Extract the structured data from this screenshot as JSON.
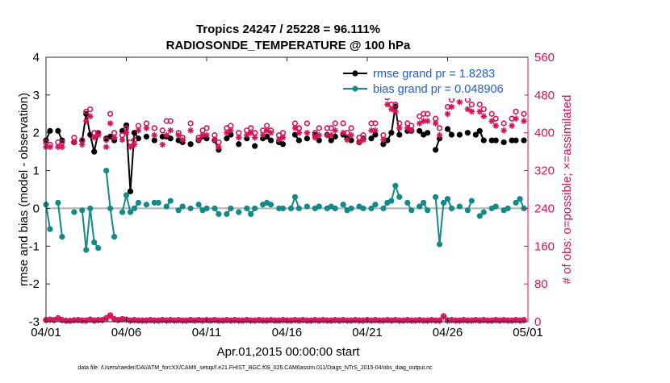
{
  "chart_data": {
    "type": "line",
    "title": "Tropics 24247 / 25228 = 96.111%",
    "subtitle": "RADIOSONDE_TEMPERATURE @ 100 hPa",
    "xlabel": "Apr.01,2015 00:00:00 start",
    "ylabel": "rmse and bias (model - observation)",
    "ylabel_right": "# of obs: o=possible; ×=assimilated",
    "footnote": "data file: /Users/raeder/DAI/ATM_forcXX/CAM6_setup/f.e21.FHIST_BGC.f09_025.CAM6assim.011/Diags_NTrS_2015-04/obs_diag_output.nc",
    "xlim": [
      0,
      30
    ],
    "ylim": [
      -3,
      4
    ],
    "ylim_right": [
      0,
      560
    ],
    "x_ticks": [
      0,
      5,
      10,
      15,
      20,
      25,
      30
    ],
    "x_tick_labels": [
      "04/01",
      "04/06",
      "04/11",
      "04/16",
      "04/21",
      "04/26",
      "05/01"
    ],
    "y_ticks": [
      -3,
      -2,
      -1,
      0,
      1,
      2,
      3,
      4
    ],
    "y_tick_labels": [
      "-3",
      "-2",
      "-1",
      "0",
      "1",
      "2",
      "3",
      "4"
    ],
    "y_ticks_right": [
      0,
      80,
      160,
      240,
      320,
      400,
      480,
      560
    ],
    "y_tick_labels_right": [
      "0",
      "80",
      "160",
      "240",
      "320",
      "400",
      "480",
      "560"
    ],
    "x": [
      0.0,
      0.25,
      0.5,
      0.75,
      1.0,
      1.25,
      1.5,
      1.75,
      2.0,
      2.25,
      2.5,
      2.75,
      3.0,
      3.25,
      3.5,
      3.75,
      4.0,
      4.25,
      4.5,
      4.75,
      5.0,
      5.25,
      5.5,
      5.75,
      6.0,
      6.25,
      6.5,
      6.75,
      7.0,
      7.25,
      7.5,
      7.75,
      8.0,
      8.25,
      8.5,
      8.75,
      9.0,
      9.25,
      9.5,
      9.75,
      10.0,
      10.25,
      10.5,
      10.75,
      11.0,
      11.25,
      11.5,
      11.75,
      12.0,
      12.25,
      12.5,
      12.75,
      13.0,
      13.25,
      13.5,
      13.75,
      14.0,
      14.25,
      14.5,
      14.75,
      15.0,
      15.25,
      15.5,
      15.75,
      16.0,
      16.25,
      16.5,
      16.75,
      17.0,
      17.25,
      17.5,
      17.75,
      18.0,
      18.25,
      18.5,
      18.75,
      19.0,
      19.25,
      19.5,
      19.75,
      20.0,
      20.25,
      20.5,
      20.75,
      21.0,
      21.25,
      21.5,
      21.75,
      22.0,
      22.25,
      22.5,
      22.75,
      23.0,
      23.25,
      23.5,
      23.75,
      24.0,
      24.25,
      24.5,
      24.75,
      25.0,
      25.25,
      25.5,
      25.75,
      26.0,
      26.25,
      26.5,
      26.75,
      27.0,
      27.25,
      27.5,
      27.75,
      28.0,
      28.25,
      28.5,
      28.75,
      29.0,
      29.25,
      29.5,
      29.75
    ],
    "series": [
      {
        "name": "rmse grand pr = 1.8283",
        "color": "#000000",
        "marker": "filled-circle",
        "values": [
          1.8,
          2.05,
          null,
          2.05,
          1.8,
          null,
          null,
          1.75,
          null,
          1.8,
          2.5,
          1.95,
          1.5,
          2.0,
          null,
          1.85,
          1.9,
          1.8,
          null,
          2.05,
          2.2,
          0.45,
          2.0,
          1.85,
          null,
          1.9,
          null,
          1.8,
          null,
          1.9,
          1.9,
          1.85,
          null,
          1.8,
          1.75,
          null,
          1.7,
          null,
          1.8,
          1.9,
          1.85,
          null,
          1.8,
          1.55,
          null,
          1.85,
          1.95,
          null,
          1.7,
          null,
          1.85,
          null,
          1.65,
          null,
          1.85,
          1.9,
          1.8,
          null,
          1.75,
          1.7,
          null,
          null,
          1.95,
          1.8,
          null,
          1.85,
          null,
          1.95,
          1.8,
          null,
          1.95,
          1.8,
          1.9,
          null,
          1.95,
          1.85,
          1.8,
          null,
          1.75,
          1.85,
          null,
          1.85,
          1.95,
          null,
          1.7,
          1.8,
          2.0,
          2.7,
          1.95,
          null,
          2.05,
          2.05,
          null,
          2.05,
          1.95,
          2.0,
          null,
          1.55,
          1.85,
          null,
          2.1,
          1.95,
          null,
          1.95,
          null,
          2.0,
          null,
          1.95,
          2.05,
          1.8,
          null,
          1.8,
          1.8,
          null,
          1.75,
          null,
          1.8,
          1.8,
          null,
          1.8
        ]
      },
      {
        "name": "bias grand pr = 0.048906",
        "color": "#138a8a",
        "marker": "filled-circle",
        "values": [
          0.1,
          -0.55,
          null,
          0.15,
          -0.75,
          null,
          null,
          -0.1,
          null,
          -0.05,
          -1.1,
          0.0,
          -0.9,
          -1.05,
          null,
          1.0,
          0.0,
          -0.75,
          null,
          -0.1,
          0.35,
          -0.1,
          0.0,
          0.15,
          null,
          0.1,
          null,
          0.15,
          0.15,
          null,
          0.05,
          0.2,
          null,
          -0.05,
          0.05,
          null,
          0.0,
          null,
          0.1,
          -0.05,
          0.0,
          null,
          0.0,
          -0.15,
          null,
          -0.15,
          0.0,
          null,
          -0.1,
          null,
          0.0,
          -0.15,
          0.0,
          null,
          0.1,
          0.15,
          0.1,
          null,
          0.0,
          0.0,
          null,
          0.0,
          0.3,
          0.0,
          null,
          0.05,
          null,
          0.0,
          0.05,
          null,
          0.0,
          0.05,
          0.0,
          null,
          0.1,
          -0.05,
          0.0,
          null,
          0.05,
          0.0,
          null,
          0.0,
          0.1,
          null,
          0.0,
          0.15,
          0.2,
          0.6,
          0.3,
          null,
          0.15,
          -0.05,
          null,
          0.05,
          0.15,
          -0.05,
          null,
          0.3,
          -0.95,
          0.15,
          0.25,
          0.0,
          null,
          0.05,
          null,
          -0.05,
          0.2,
          null,
          -0.2,
          -0.1,
          null,
          0.0,
          0.05,
          null,
          -0.05,
          0.0,
          null,
          0.15,
          0.25,
          0.0
        ]
      },
      {
        "name": "possible obs",
        "color": "#d4145a",
        "marker": "open-circle",
        "axis": "right",
        "values": [
          380,
          375,
          null,
          380,
          380,
          null,
          null,
          390,
          null,
          385,
          445,
          450,
          400,
          400,
          null,
          385,
          440,
          400,
          null,
          395,
          410,
          380,
          385,
          415,
          null,
          420,
          null,
          410,
          null,
          405,
          425,
          425,
          null,
          400,
          390,
          null,
          420,
          null,
          390,
          405,
          410,
          null,
          395,
          380,
          null,
          410,
          415,
          null,
          400,
          null,
          405,
          410,
          400,
          null,
          405,
          415,
          405,
          null,
          395,
          400,
          null,
          null,
          420,
          410,
          null,
          420,
          null,
          400,
          410,
          null,
          410,
          410,
          420,
          null,
          420,
          400,
          410,
          null,
          390,
          395,
          null,
          420,
          420,
          null,
          395,
          475,
          460,
          460,
          420,
          null,
          420,
          415,
          null,
          435,
          440,
          440,
          null,
          430,
          410,
          null,
          455,
          470,
          null,
          485,
          null,
          470,
          460,
          null,
          460,
          450,
          null,
          440,
          430,
          null,
          420,
          null,
          430,
          445,
          null,
          440
        ]
      },
      {
        "name": "assimilated obs",
        "color": "#d4145a",
        "marker": "asterisk",
        "axis": "right",
        "values": [
          370,
          370,
          null,
          370,
          370,
          null,
          null,
          380,
          null,
          375,
          425,
          435,
          390,
          395,
          null,
          370,
          420,
          390,
          null,
          385,
          400,
          370,
          375,
          405,
          null,
          410,
          null,
          395,
          null,
          375,
          395,
          405,
          null,
          395,
          385,
          null,
          405,
          null,
          385,
          395,
          395,
          null,
          385,
          370,
          null,
          400,
          405,
          null,
          390,
          null,
          395,
          400,
          390,
          null,
          395,
          405,
          400,
          null,
          385,
          390,
          null,
          null,
          410,
          400,
          null,
          400,
          null,
          390,
          395,
          null,
          395,
          395,
          405,
          null,
          400,
          385,
          395,
          null,
          380,
          385,
          null,
          405,
          405,
          null,
          385,
          460,
          450,
          445,
          410,
          null,
          410,
          405,
          null,
          420,
          425,
          425,
          null,
          420,
          395,
          null,
          440,
          455,
          null,
          465,
          null,
          450,
          445,
          null,
          445,
          435,
          null,
          425,
          415,
          null,
          405,
          null,
          415,
          430,
          null,
          425
        ]
      },
      {
        "name": "possible obs (lower)",
        "color": "#d4145a",
        "marker": "open-circle",
        "axis": "right",
        "values": [
          4,
          5,
          4,
          8,
          4,
          2,
          2,
          3,
          4,
          3,
          3,
          5,
          3,
          4,
          4,
          8,
          14,
          6,
          4,
          6,
          5,
          3,
          4,
          3,
          3,
          3,
          4,
          3,
          3,
          4,
          3,
          4,
          3,
          4,
          3,
          3,
          4,
          3,
          4,
          3,
          4,
          3,
          4,
          3,
          3,
          4,
          3,
          4,
          3,
          3,
          4,
          3,
          3,
          4,
          3,
          3,
          4,
          3,
          3,
          4,
          3,
          3,
          4,
          3,
          4,
          3,
          3,
          4,
          3,
          4,
          3,
          3,
          4,
          3,
          4,
          3,
          3,
          4,
          3,
          3,
          4,
          3,
          4,
          3,
          3,
          4,
          3,
          4,
          3,
          3,
          4,
          3,
          3,
          4,
          3,
          3,
          4,
          3,
          3,
          12,
          3,
          4,
          3,
          3,
          4,
          3,
          3,
          4,
          3,
          4,
          3,
          3,
          4,
          3,
          4,
          3,
          3,
          4,
          3,
          4
        ]
      },
      {
        "name": "assimilated obs (lower)",
        "color": "#d4145a",
        "marker": "asterisk",
        "axis": "right",
        "values": [
          3,
          4,
          3,
          6,
          3,
          2,
          2,
          3,
          3,
          2,
          2,
          4,
          2,
          3,
          3,
          6,
          12,
          5,
          3,
          5,
          4,
          2,
          3,
          2,
          2,
          2,
          3,
          2,
          2,
          3,
          2,
          3,
          2,
          3,
          2,
          2,
          3,
          2,
          3,
          2,
          3,
          2,
          3,
          2,
          2,
          3,
          2,
          3,
          2,
          2,
          3,
          2,
          2,
          3,
          2,
          2,
          3,
          2,
          2,
          3,
          2,
          2,
          3,
          2,
          3,
          2,
          2,
          3,
          2,
          3,
          2,
          2,
          3,
          2,
          3,
          2,
          2,
          3,
          2,
          2,
          3,
          2,
          3,
          2,
          2,
          3,
          2,
          3,
          2,
          2,
          3,
          2,
          2,
          3,
          2,
          2,
          3,
          2,
          2,
          10,
          2,
          3,
          2,
          2,
          3,
          2,
          2,
          3,
          2,
          3,
          2,
          2,
          3,
          2,
          3,
          2,
          2,
          3,
          2,
          3
        ]
      }
    ],
    "legend": [
      {
        "label": "rmse grand pr = 1.8283",
        "color": "#000000"
      },
      {
        "label": "bias grand pr = 0.048906",
        "color": "#138a8a"
      }
    ],
    "legend_position": "top-right",
    "zero_line": 0
  }
}
